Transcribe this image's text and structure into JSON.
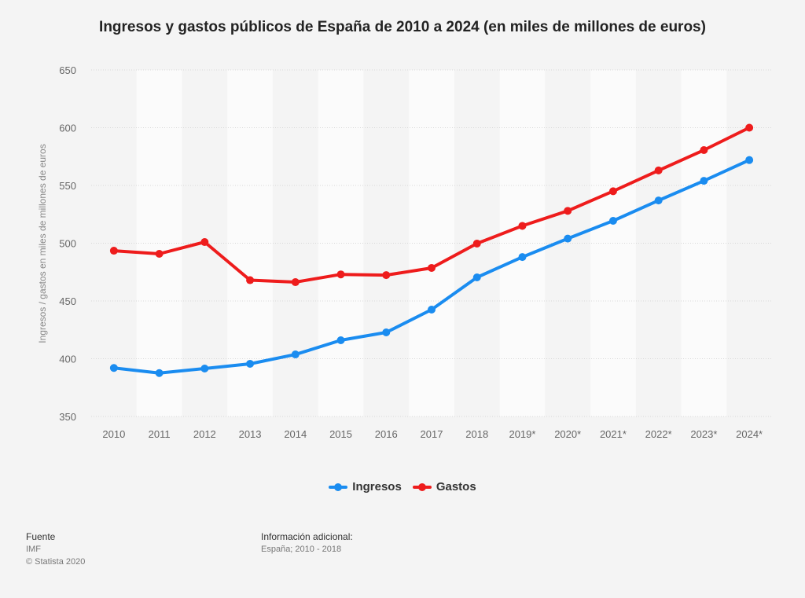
{
  "chart_data": {
    "type": "line",
    "title": "Ingresos y gastos públicos de España de 2010 a 2024 (en miles de millones de euros)",
    "xlabel": "",
    "ylabel": "Ingresos / gastos en miles de millones de euros",
    "categories": [
      "2010",
      "2011",
      "2012",
      "2013",
      "2014",
      "2015",
      "2016",
      "2017",
      "2018",
      "2019*",
      "2020*",
      "2021*",
      "2022*",
      "2023*",
      "2024*"
    ],
    "ylim": [
      350,
      650
    ],
    "yticks": [
      350,
      400,
      450,
      500,
      550,
      600,
      650
    ],
    "grid": true,
    "legend_position": "bottom-center",
    "series": [
      {
        "name": "Ingresos",
        "color": "#1a8cf0",
        "values": [
          392,
          387.6,
          391.5,
          395.6,
          403.7,
          416,
          422.8,
          442.5,
          470.4,
          488,
          504,
          519.4,
          537,
          554,
          572
        ]
      },
      {
        "name": "Gastos",
        "color": "#ee1c1c",
        "values": [
          493.5,
          490.8,
          501,
          468,
          466.3,
          473,
          472.4,
          478.6,
          499.7,
          515,
          528,
          545,
          563,
          580.6,
          600
        ]
      }
    ]
  },
  "footer": {
    "source_heading": "Fuente",
    "source_name": "IMF",
    "copyright": "© Statista 2020",
    "info_heading": "Información adicional:",
    "info_text": "España; 2010 - 2018"
  }
}
